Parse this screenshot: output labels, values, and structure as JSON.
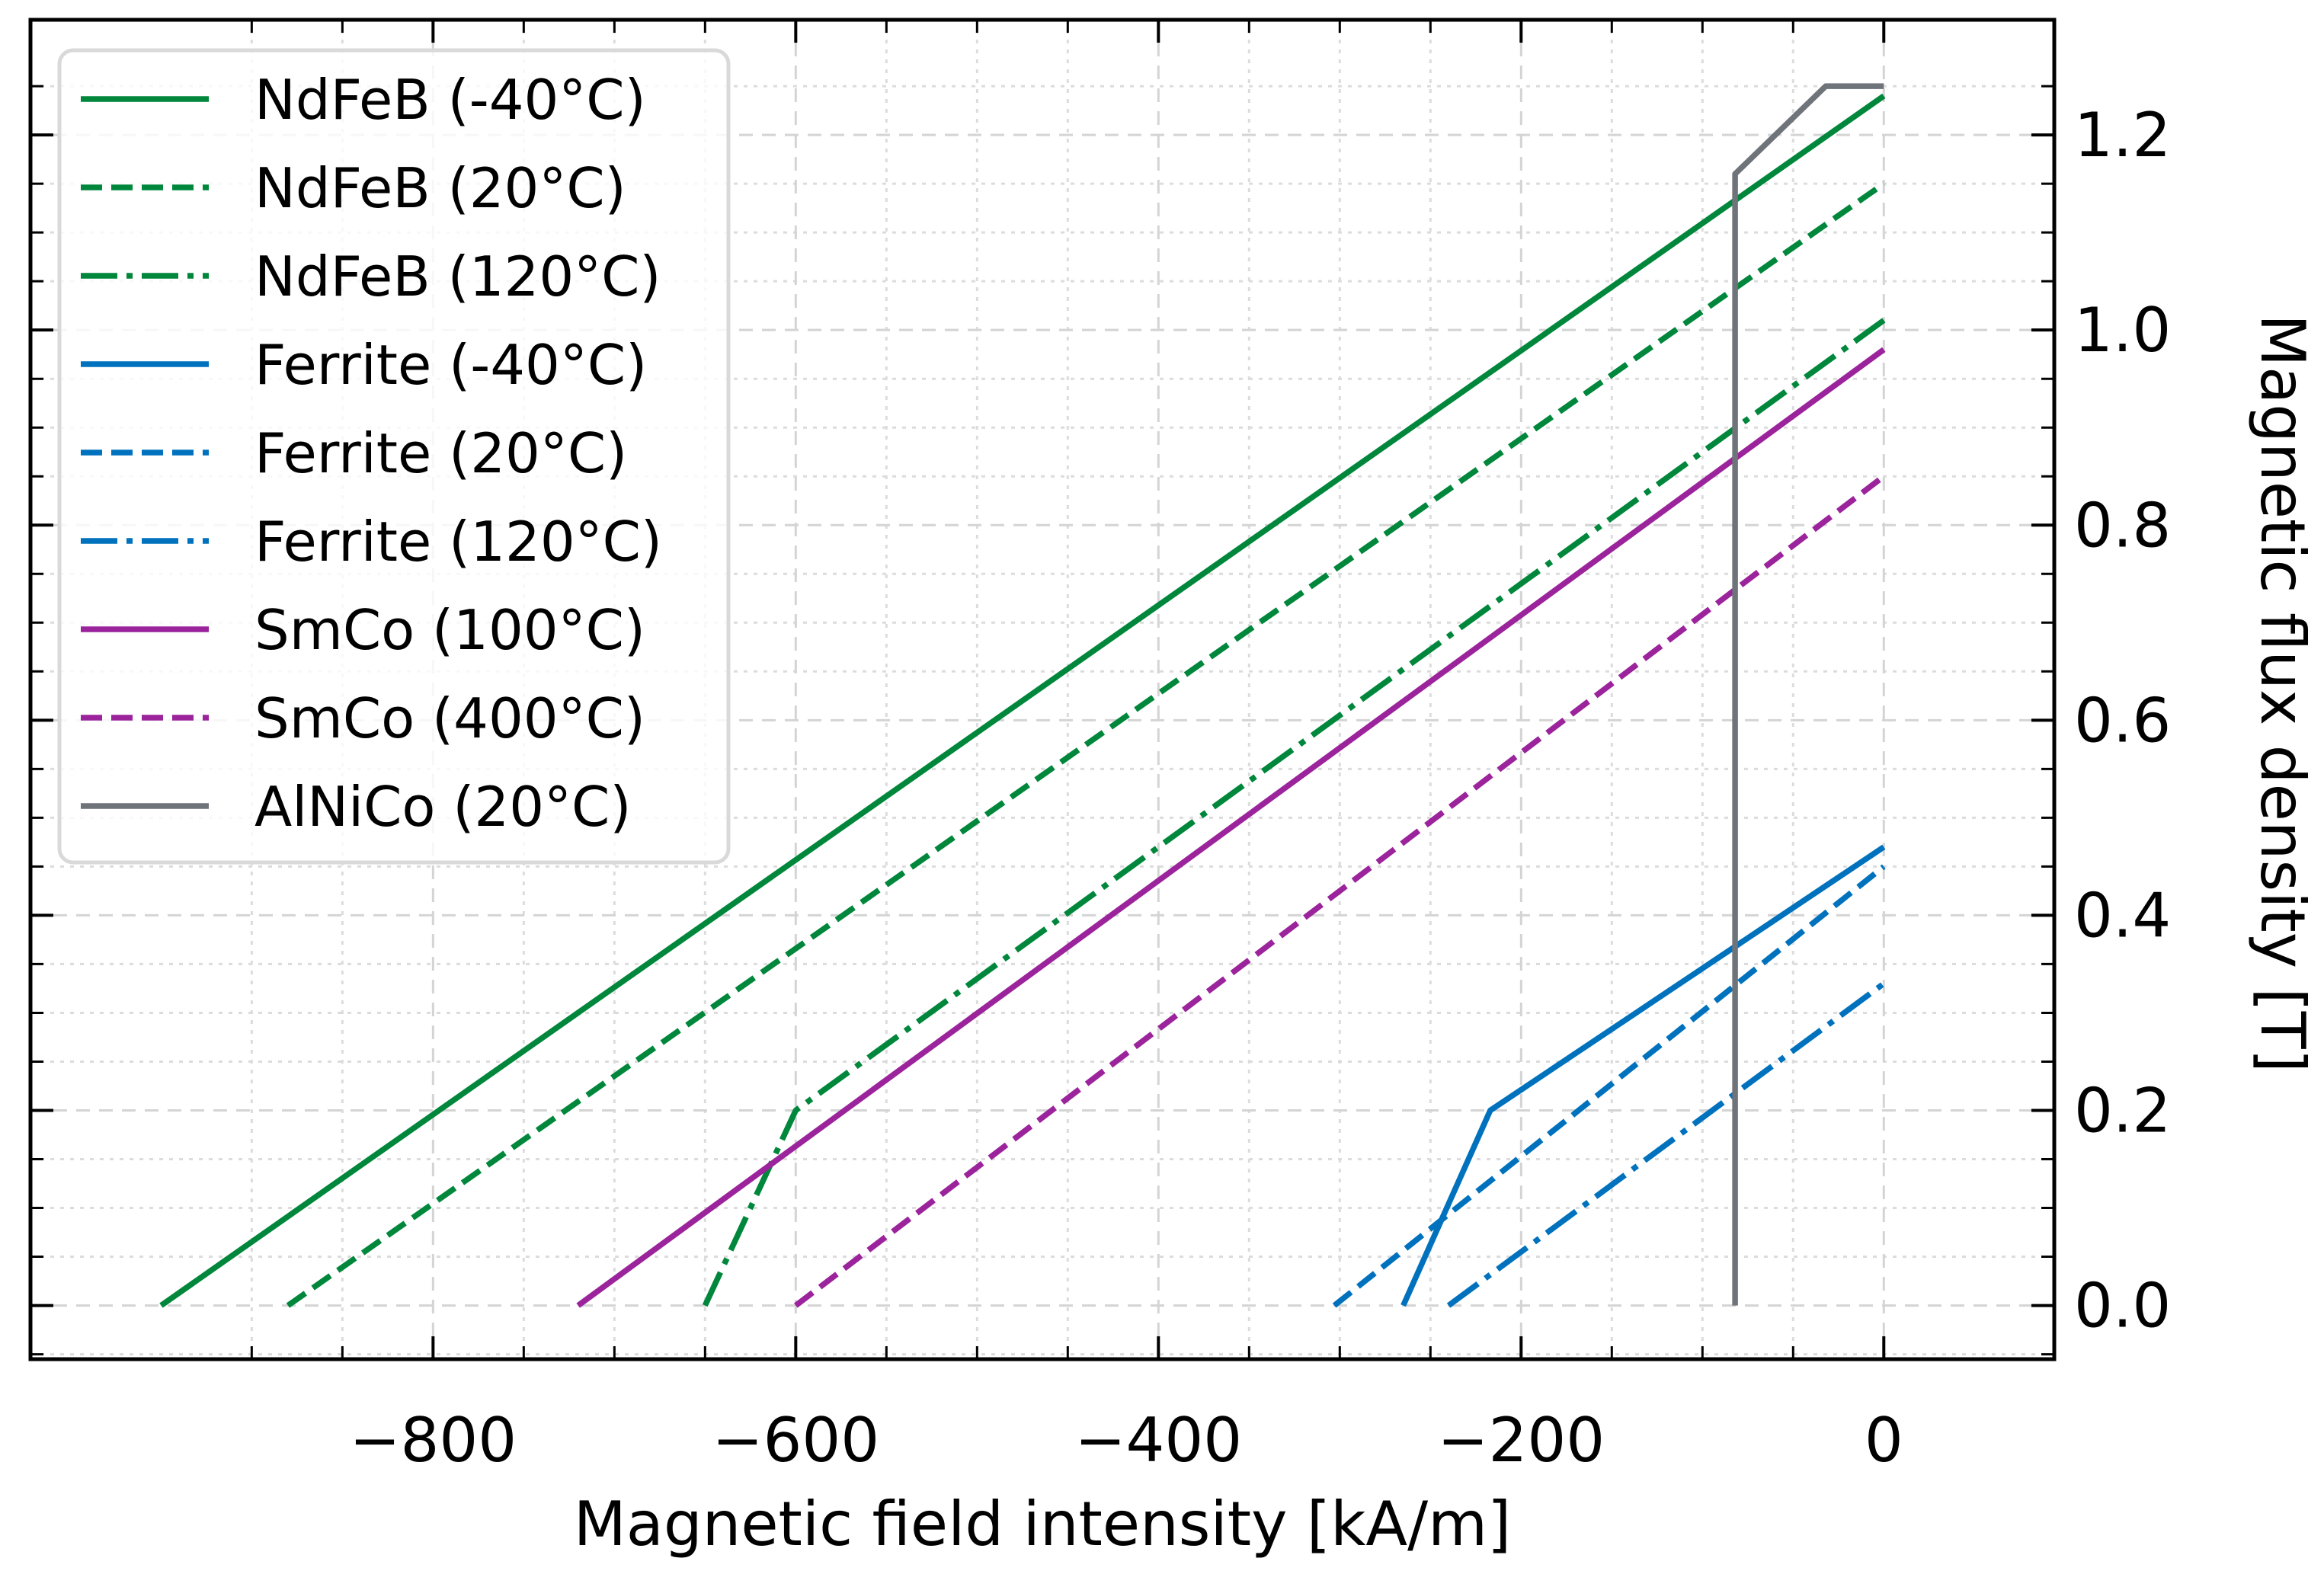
{
  "chart_data": {
    "type": "line",
    "title": "",
    "xlabel": "Magnetic field intensity [kA/m]",
    "ylabel": "Magnetic flux density [T]",
    "xlim": [
      -1022,
      94
    ],
    "ylim": [
      -0.055,
      1.318
    ],
    "x_ticks": [
      -800,
      -600,
      -400,
      -200,
      0
    ],
    "x_tick_labels": [
      "−800",
      "−600",
      "−400",
      "−200",
      "0"
    ],
    "y_ticks": [
      0.0,
      0.2,
      0.4,
      0.6,
      0.8,
      1.0,
      1.2
    ],
    "y_tick_labels": [
      "0.0",
      "0.2",
      "0.4",
      "0.6",
      "0.8",
      "1.0",
      "1.2"
    ],
    "y_axis_side": "right",
    "grid": true,
    "legend_position": "top-left",
    "series": [
      {
        "name": "NdFeB (-40°C)",
        "color": "#00873C",
        "dash": "solid",
        "x": [
          -950,
          0
        ],
        "y": [
          0.0,
          1.24
        ]
      },
      {
        "name": "NdFeB (20°C)",
        "color": "#00873C",
        "dash": "dashed",
        "x": [
          -880,
          0
        ],
        "y": [
          0.0,
          1.15
        ]
      },
      {
        "name": "NdFeB (120°C)",
        "color": "#00873C",
        "dash": "dashdot",
        "x": [
          -650,
          -600,
          0
        ],
        "y": [
          0.0,
          0.2,
          1.01
        ]
      },
      {
        "name": "Ferrite (-40°C)",
        "color": "#0072BD",
        "dash": "solid",
        "x": [
          -265,
          -217,
          0
        ],
        "y": [
          0.0,
          0.2,
          0.47
        ]
      },
      {
        "name": "Ferrite (20°C)",
        "color": "#0072BD",
        "dash": "dashed",
        "x": [
          -303,
          0
        ],
        "y": [
          0.0,
          0.45
        ]
      },
      {
        "name": "Ferrite (120°C)",
        "color": "#0072BD",
        "dash": "dashdot",
        "x": [
          -240,
          0
        ],
        "y": [
          0.0,
          0.33
        ]
      },
      {
        "name": "SmCo (100°C)",
        "color": "#9B239B",
        "dash": "solid",
        "x": [
          -720,
          0
        ],
        "y": [
          0.0,
          0.98
        ]
      },
      {
        "name": "SmCo (400°C)",
        "color": "#9B239B",
        "dash": "dashed",
        "x": [
          -600,
          0
        ],
        "y": [
          0.0,
          0.85
        ]
      },
      {
        "name": "AlNiCo (20°C)",
        "color": "#6F737A",
        "dash": "solid",
        "x": [
          -82,
          -82,
          -32,
          0
        ],
        "y": [
          0.0,
          1.16,
          1.25,
          1.25
        ]
      }
    ]
  }
}
